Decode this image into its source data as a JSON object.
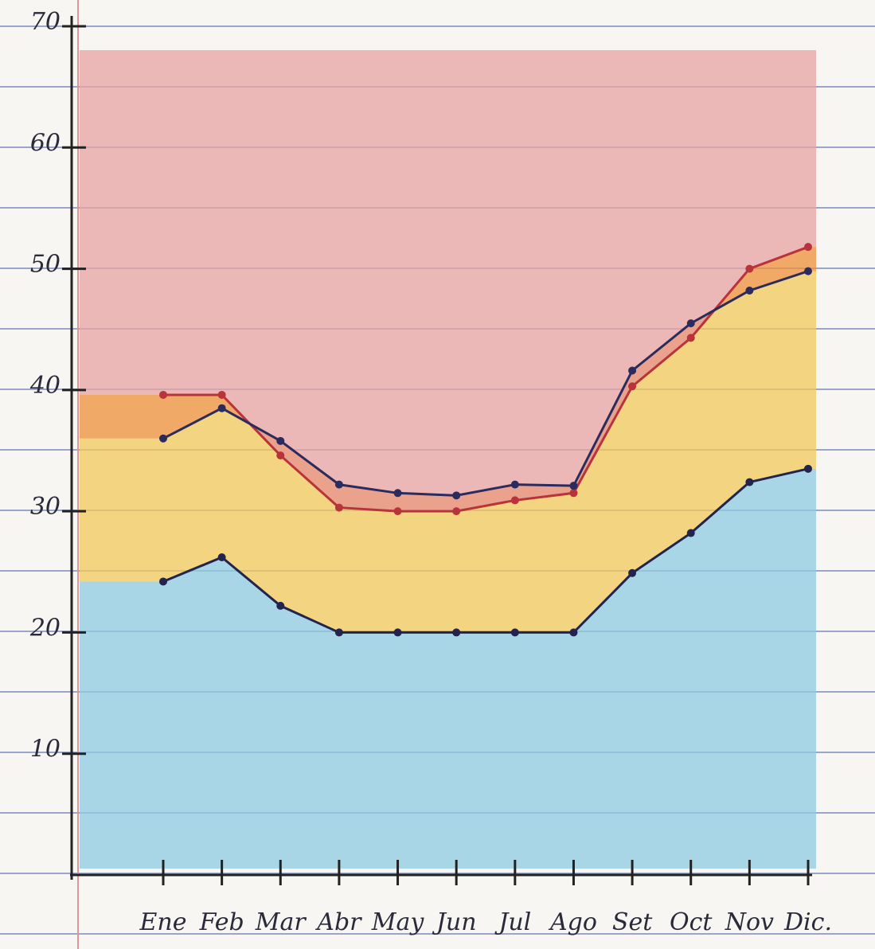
{
  "chart_data": {
    "type": "line",
    "categories": [
      "Ene",
      "Feb",
      "Mar",
      "Abr",
      "May",
      "Jun",
      "Jul",
      "Ago",
      "Set",
      "Oct",
      "Nov",
      "Dic."
    ],
    "series": [
      {
        "color": "#b8333a",
        "values": [
          39.6,
          39.6,
          34.6,
          30.3,
          30,
          30,
          30.9,
          31.5,
          40.3,
          44.3,
          50,
          51.8
        ]
      },
      {
        "color": "#2b2b5e",
        "values": [
          36,
          38.5,
          35.8,
          32.2,
          31.5,
          31.3,
          32.2,
          32.1,
          41.6,
          45.5,
          48.2,
          49.8
        ]
      },
      {
        "color": "#23234f",
        "values": [
          24.2,
          26.2,
          22.2,
          20,
          20,
          20,
          20,
          20,
          24.9,
          28.2,
          32.4,
          33.5
        ]
      }
    ],
    "band_colors": [
      "#8fcbe3",
      "#f1c85a",
      "#ef8f3a",
      "#e8a3a3"
    ],
    "ylim": [
      0,
      70
    ],
    "yticks": [
      10,
      20,
      30,
      40,
      50,
      60,
      70
    ]
  }
}
